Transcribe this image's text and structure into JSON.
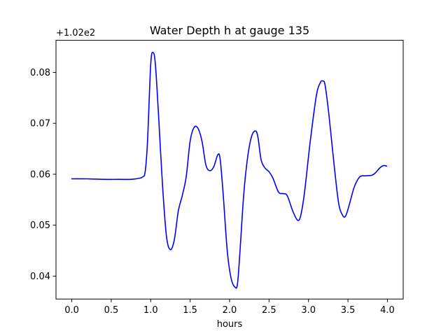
{
  "chart_data": {
    "type": "line",
    "title": "Water Depth h at gauge 135",
    "xlabel": "hours",
    "ylabel": "",
    "offset_text": "+1.02e2",
    "xlim": [
      -0.2,
      4.2
    ],
    "ylim": [
      0.0355,
      0.0863
    ],
    "xticks": [
      0.0,
      0.5,
      1.0,
      1.5,
      2.0,
      2.5,
      3.0,
      3.5,
      4.0
    ],
    "xtick_labels": [
      "0.0",
      "0.5",
      "1.0",
      "1.5",
      "2.0",
      "2.5",
      "3.0",
      "3.5",
      "4.0"
    ],
    "yticks": [
      0.04,
      0.05,
      0.06,
      0.07,
      0.08
    ],
    "ytick_labels": [
      "0.04",
      "0.05",
      "0.06",
      "0.07",
      "0.08"
    ],
    "grid": false,
    "series": [
      {
        "color": "#0000ff",
        "x": [
          0.0,
          0.2,
          0.4,
          0.6,
          0.75,
          0.85,
          0.9,
          0.93,
          0.96,
          1.0,
          1.03,
          1.06,
          1.1,
          1.15,
          1.2,
          1.25,
          1.3,
          1.35,
          1.4,
          1.45,
          1.5,
          1.55,
          1.6,
          1.65,
          1.7,
          1.75,
          1.8,
          1.85,
          1.88,
          1.92,
          1.97,
          2.02,
          2.07,
          2.1,
          2.13,
          2.18,
          2.23,
          2.28,
          2.33,
          2.36,
          2.4,
          2.45,
          2.5,
          2.55,
          2.62,
          2.68,
          2.73,
          2.8,
          2.86,
          2.9,
          2.95,
          3.02,
          3.1,
          3.15,
          3.18,
          3.21,
          3.26,
          3.32,
          3.38,
          3.43,
          3.47,
          3.52,
          3.58,
          3.65,
          3.72,
          3.8,
          3.85,
          3.9,
          3.95,
          3.99
        ],
        "y": [
          0.0591,
          0.0591,
          0.059,
          0.059,
          0.059,
          0.0592,
          0.0595,
          0.0605,
          0.0665,
          0.0815,
          0.0839,
          0.0815,
          0.0715,
          0.0578,
          0.0478,
          0.0452,
          0.0472,
          0.0528,
          0.0558,
          0.0595,
          0.0665,
          0.0692,
          0.069,
          0.0665,
          0.0618,
          0.0607,
          0.0615,
          0.0638,
          0.063,
          0.0558,
          0.045,
          0.0395,
          0.0378,
          0.0385,
          0.0445,
          0.0562,
          0.0635,
          0.0675,
          0.0685,
          0.0672,
          0.0628,
          0.0612,
          0.0605,
          0.0592,
          0.0565,
          0.0562,
          0.0558,
          0.0528,
          0.051,
          0.0518,
          0.0565,
          0.0662,
          0.0755,
          0.078,
          0.0783,
          0.0775,
          0.0715,
          0.0625,
          0.0545,
          0.052,
          0.0518,
          0.0542,
          0.0575,
          0.0595,
          0.0597,
          0.0598,
          0.0603,
          0.0612,
          0.0617,
          0.0616
        ]
      }
    ]
  }
}
